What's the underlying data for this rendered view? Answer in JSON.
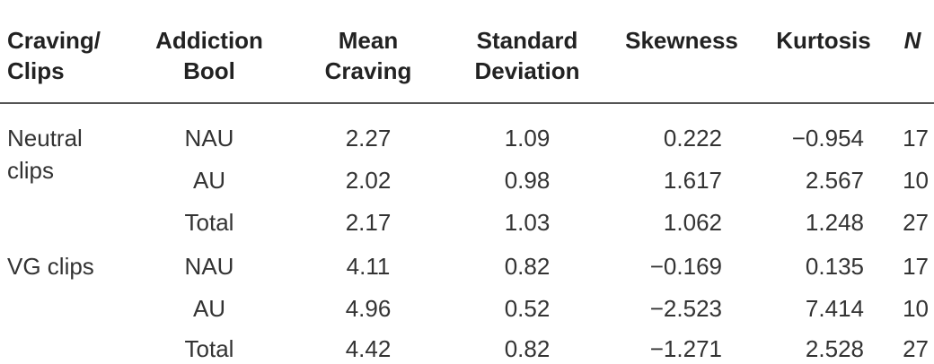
{
  "table": {
    "headers": {
      "col1": [
        "Craving/",
        "Clips"
      ],
      "col2": [
        "Addiction",
        "Bool"
      ],
      "col3": [
        "Mean",
        "Craving"
      ],
      "col4": [
        "Standard",
        "Deviation"
      ],
      "col5": [
        "Skewness"
      ],
      "col6": [
        "Kurtosis"
      ],
      "col7": [
        "N"
      ]
    },
    "groups": [
      {
        "label": [
          "Neutral",
          "clips"
        ],
        "rows": [
          {
            "bool": "NAU",
            "mean": "2.27",
            "sd": "1.09",
            "skew": "0.222",
            "kurt": "−0.954",
            "n": "17"
          },
          {
            "bool": "AU",
            "mean": "2.02",
            "sd": "0.98",
            "skew": "1.617",
            "kurt": "2.567",
            "n": "10"
          },
          {
            "bool": "Total",
            "mean": "2.17",
            "sd": "1.03",
            "skew": "1.062",
            "kurt": "1.248",
            "n": "27"
          }
        ]
      },
      {
        "label": [
          "VG clips"
        ],
        "rows": [
          {
            "bool": "NAU",
            "mean": "4.11",
            "sd": "0.82",
            "skew": "−0.169",
            "kurt": "0.135",
            "n": "17"
          },
          {
            "bool": "AU",
            "mean": "4.96",
            "sd": "0.52",
            "skew": "−2.523",
            "kurt": "7.414",
            "n": "10"
          },
          {
            "bool": "Total",
            "mean": "4.42",
            "sd": "0.82",
            "skew": "−1.271",
            "kurt": "2.528",
            "n": "27"
          }
        ]
      }
    ]
  }
}
